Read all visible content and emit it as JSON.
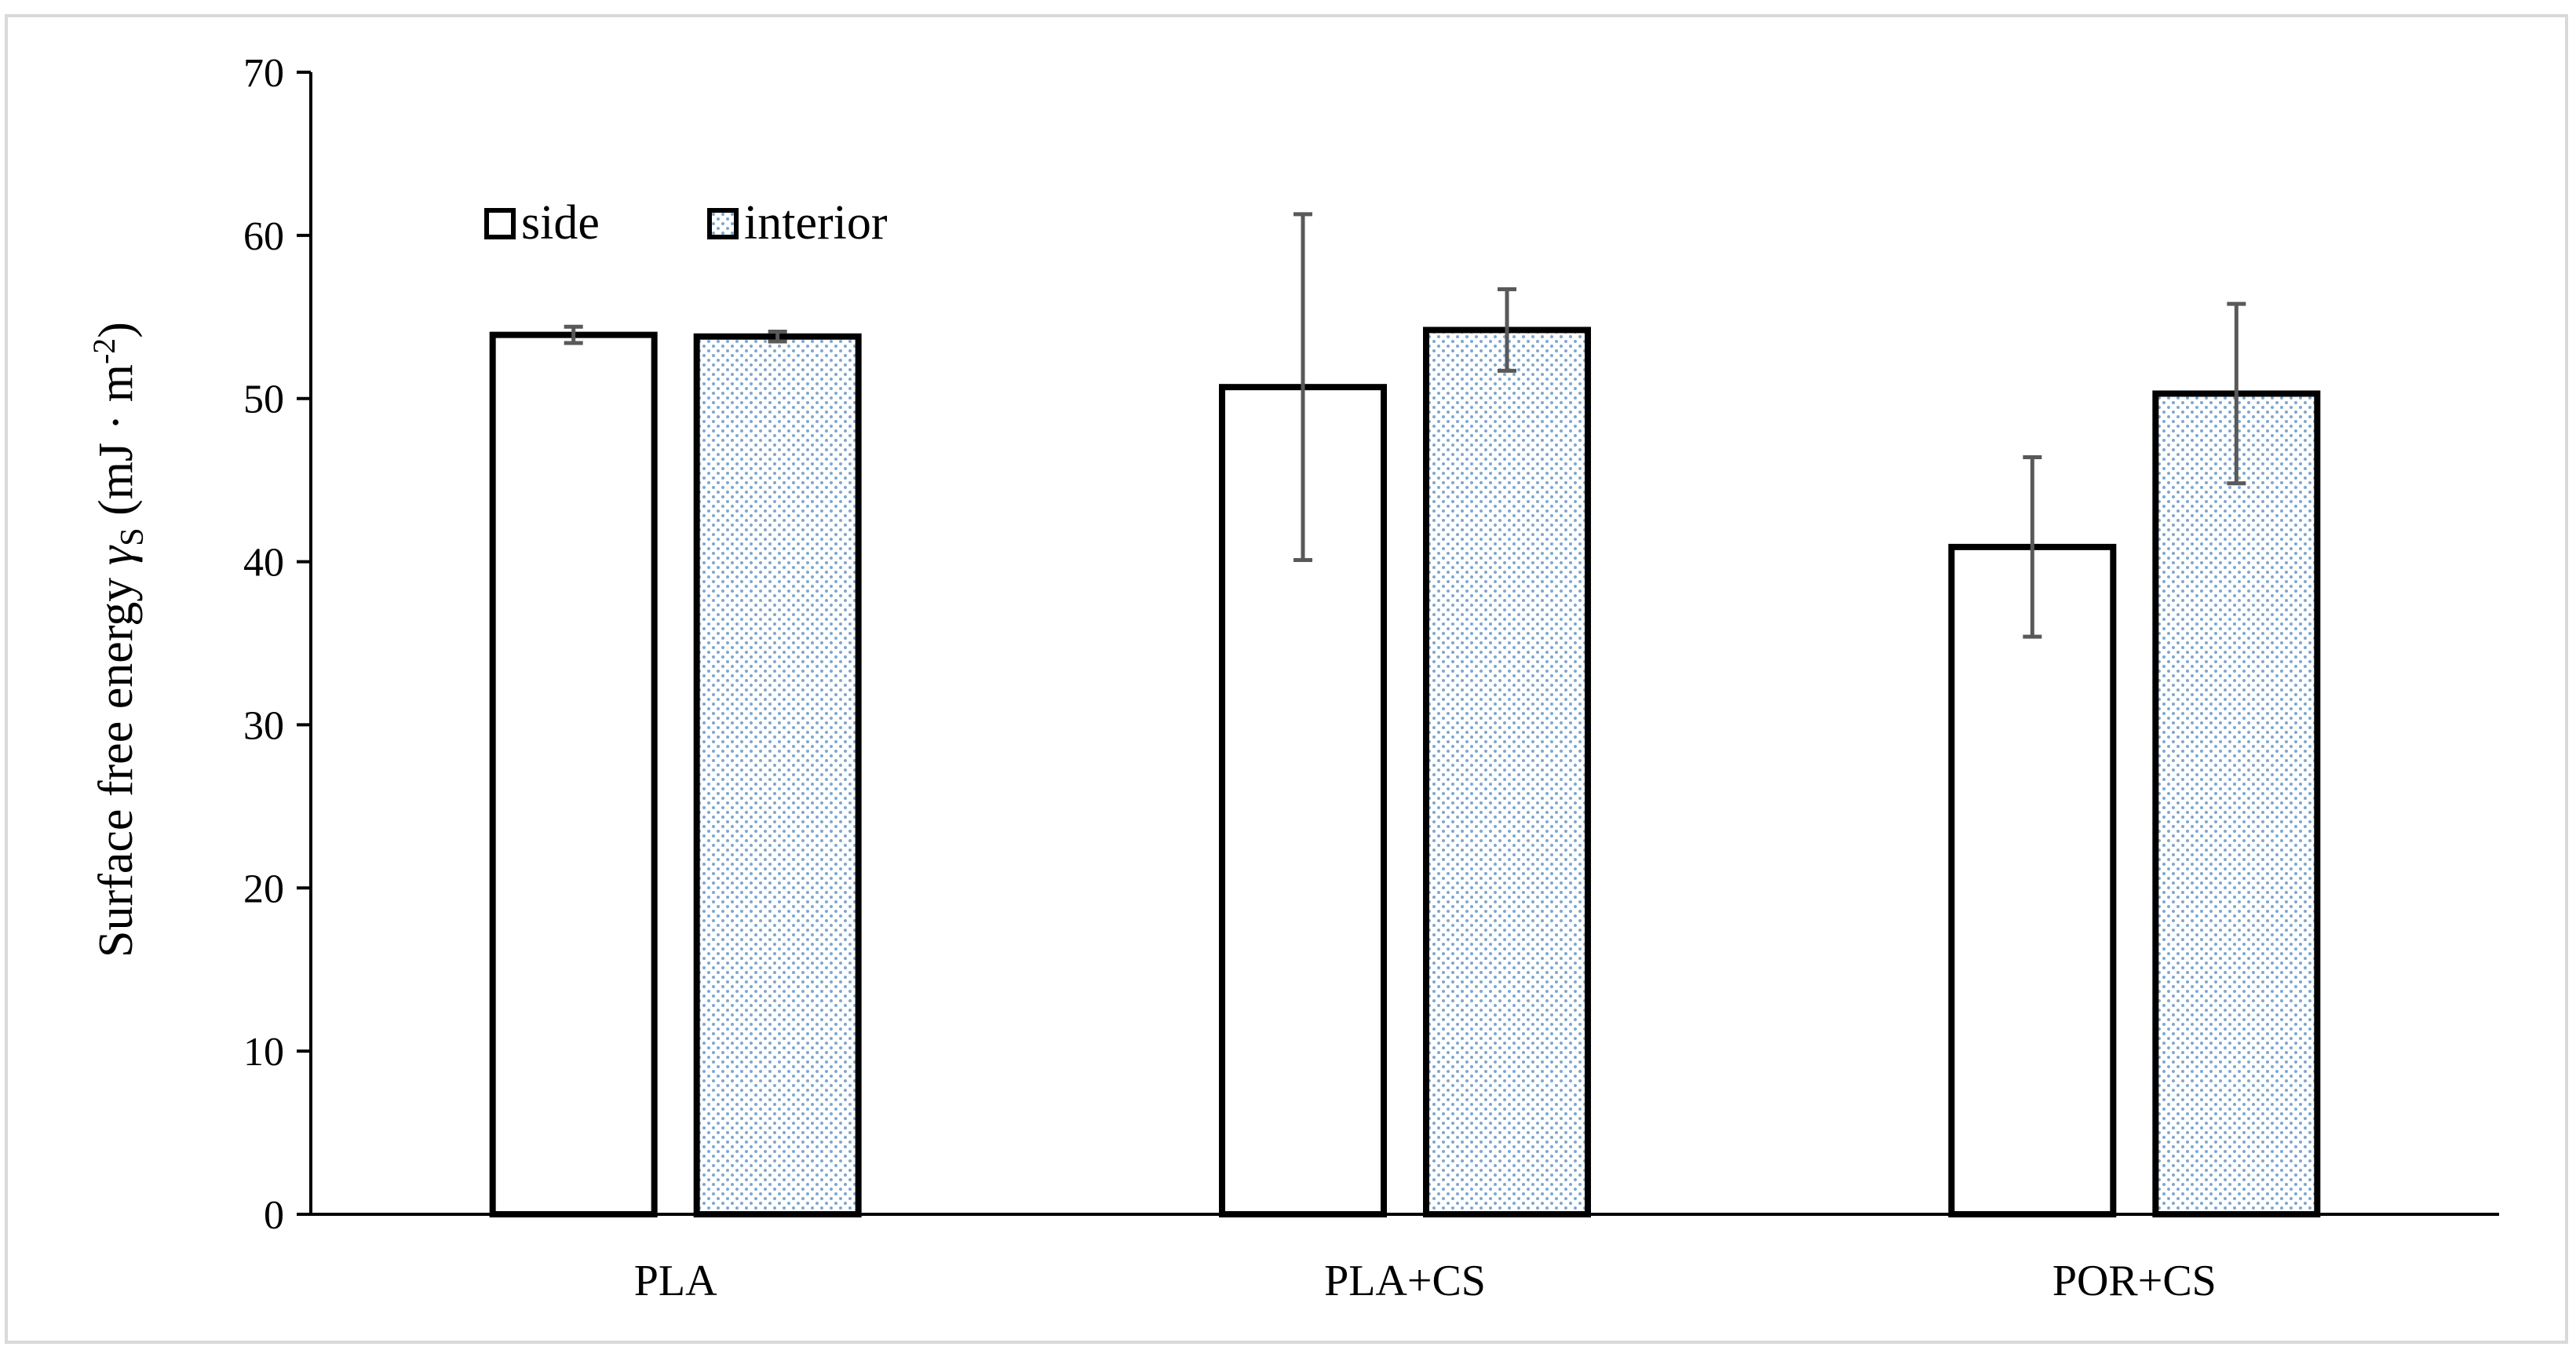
{
  "chart_data": {
    "type": "bar",
    "title": "",
    "xlabel": "",
    "ylabel": {
      "main": "Surface free energy ",
      "gamma": "γ",
      "gamma_sub": "S",
      "unit_open": " (mJ · m",
      "unit_sup": "-2",
      "unit_close": ")"
    },
    "categories": [
      "PLA",
      "PLA+CS",
      "POR+CS"
    ],
    "ylim": [
      0,
      70
    ],
    "yticks": [
      0,
      10,
      20,
      30,
      40,
      50,
      60,
      70
    ],
    "grid": false,
    "legend_position": "top-left",
    "series": [
      {
        "name": "side",
        "values": [
          53.9,
          50.7,
          40.9
        ],
        "errors": [
          0.5,
          10.6,
          5.5
        ],
        "fill": "#ffffff",
        "stroke": "#000000"
      },
      {
        "name": "interior",
        "values": [
          53.8,
          54.2,
          50.3
        ],
        "errors": [
          0.3,
          2.5,
          5.5
        ],
        "fill": "#ffffff",
        "pattern_color": "#7fa7cf",
        "stroke": "#000000"
      }
    ],
    "colors": {
      "frame": "#d9d9d9",
      "axis": "#000000",
      "errorbar": "#595959"
    }
  }
}
